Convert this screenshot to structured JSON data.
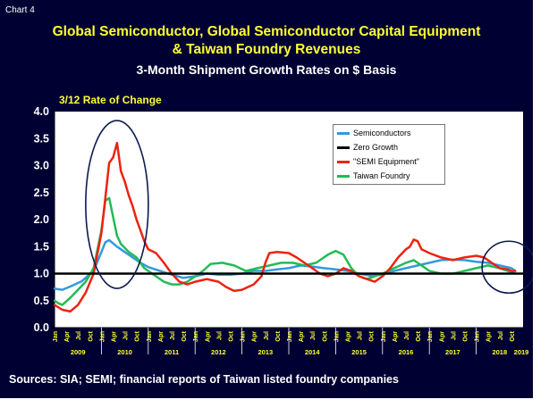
{
  "chart_label": "Chart 4",
  "title_line1": "Global Semiconductor, Global Semiconductor Capital Equipment",
  "title_line2": "& Taiwan Foundry  Revenues",
  "subtitle": "3-Month Shipment Growth Rates on $ Basis",
  "source": "Sources: SIA; SEMI; financial reports of Taiwan listed foundry companies",
  "colors": {
    "background": "#000033",
    "plot_area": "#ffffff",
    "title": "#ffff33",
    "semiconductors": "#3399dd",
    "zero_growth": "#000000",
    "semi_equipment": "#ee2211",
    "taiwan_foundry": "#22bb55",
    "highlight_ellipse": "#0a1a50"
  },
  "chart_data": {
    "type": "line",
    "ylabel": "3/12 Rate of Change",
    "ylim": [
      0,
      4
    ],
    "yticks": [
      "0.0",
      "0.5",
      "1.0",
      "1.5",
      "2.0",
      "2.5",
      "3.0",
      "3.5",
      "4.0"
    ],
    "xlim": [
      "2009-01",
      "2019-01"
    ],
    "month_ticks": [
      "Jan",
      "Apr",
      "Jul",
      "Oct"
    ],
    "year_labels": [
      "2009",
      "2010",
      "2011",
      "2012",
      "2013",
      "2014",
      "2015",
      "2016",
      "2017",
      "2018",
      "2019"
    ],
    "grid": false,
    "legend_position": "top-right",
    "series": [
      {
        "name": "Semiconductors",
        "points": [
          [
            "2009-01",
            0.72
          ],
          [
            "2009-03",
            0.7
          ],
          [
            "2009-05",
            0.76
          ],
          [
            "2009-08",
            0.86
          ],
          [
            "2009-11",
            1.05
          ],
          [
            "2010-01",
            1.4
          ],
          [
            "2010-02",
            1.58
          ],
          [
            "2010-03",
            1.62
          ],
          [
            "2010-05",
            1.5
          ],
          [
            "2010-07",
            1.4
          ],
          [
            "2010-09",
            1.3
          ],
          [
            "2010-11",
            1.2
          ],
          [
            "2011-01",
            1.12
          ],
          [
            "2011-04",
            1.05
          ],
          [
            "2011-07",
            0.98
          ],
          [
            "2011-10",
            0.92
          ],
          [
            "2012-01",
            0.95
          ],
          [
            "2012-04",
            1.0
          ],
          [
            "2012-07",
            0.98
          ],
          [
            "2012-10",
            0.98
          ],
          [
            "2013-01",
            1.0
          ],
          [
            "2013-04",
            1.05
          ],
          [
            "2013-07",
            1.05
          ],
          [
            "2013-10",
            1.08
          ],
          [
            "2014-01",
            1.1
          ],
          [
            "2014-04",
            1.15
          ],
          [
            "2014-07",
            1.13
          ],
          [
            "2014-10",
            1.1
          ],
          [
            "2015-01",
            1.08
          ],
          [
            "2015-04",
            1.05
          ],
          [
            "2015-07",
            1.0
          ],
          [
            "2015-10",
            0.96
          ],
          [
            "2016-01",
            0.98
          ],
          [
            "2016-04",
            1.05
          ],
          [
            "2016-07",
            1.1
          ],
          [
            "2016-10",
            1.15
          ],
          [
            "2017-01",
            1.2
          ],
          [
            "2017-04",
            1.25
          ],
          [
            "2017-07",
            1.26
          ],
          [
            "2017-10",
            1.25
          ],
          [
            "2018-01",
            1.22
          ],
          [
            "2018-04",
            1.2
          ],
          [
            "2018-07",
            1.15
          ],
          [
            "2018-10",
            1.1
          ],
          [
            "2018-11",
            1.05
          ]
        ]
      },
      {
        "name": "Zero Growth",
        "points": [
          [
            "2009-01",
            1.0
          ],
          [
            "2019-01",
            1.0
          ]
        ]
      },
      {
        "name": "\"SEMI Equipment\"",
        "points": [
          [
            "2009-01",
            0.42
          ],
          [
            "2009-03",
            0.33
          ],
          [
            "2009-05",
            0.3
          ],
          [
            "2009-07",
            0.42
          ],
          [
            "2009-09",
            0.65
          ],
          [
            "2009-11",
            1.0
          ],
          [
            "2010-01",
            1.75
          ],
          [
            "2010-02",
            2.4
          ],
          [
            "2010-03",
            3.05
          ],
          [
            "2010-04",
            3.15
          ],
          [
            "2010-05",
            3.42
          ],
          [
            "2010-06",
            2.9
          ],
          [
            "2010-07",
            2.7
          ],
          [
            "2010-08",
            2.45
          ],
          [
            "2010-09",
            2.25
          ],
          [
            "2010-10",
            2.0
          ],
          [
            "2010-11",
            1.8
          ],
          [
            "2010-12",
            1.6
          ],
          [
            "2011-01",
            1.45
          ],
          [
            "2011-03",
            1.38
          ],
          [
            "2011-05",
            1.2
          ],
          [
            "2011-07",
            1.0
          ],
          [
            "2011-09",
            0.85
          ],
          [
            "2011-11",
            0.8
          ],
          [
            "2012-01",
            0.85
          ],
          [
            "2012-04",
            0.9
          ],
          [
            "2012-07",
            0.85
          ],
          [
            "2012-09",
            0.75
          ],
          [
            "2012-11",
            0.68
          ],
          [
            "2013-01",
            0.7
          ],
          [
            "2013-04",
            0.8
          ],
          [
            "2013-06",
            0.95
          ],
          [
            "2013-07",
            1.2
          ],
          [
            "2013-08",
            1.38
          ],
          [
            "2013-10",
            1.4
          ],
          [
            "2014-01",
            1.38
          ],
          [
            "2014-03",
            1.3
          ],
          [
            "2014-05",
            1.2
          ],
          [
            "2014-07",
            1.1
          ],
          [
            "2014-09",
            1.0
          ],
          [
            "2014-11",
            0.95
          ],
          [
            "2015-01",
            1.0
          ],
          [
            "2015-03",
            1.1
          ],
          [
            "2015-05",
            1.05
          ],
          [
            "2015-07",
            0.95
          ],
          [
            "2015-09",
            0.9
          ],
          [
            "2015-11",
            0.85
          ],
          [
            "2016-01",
            0.95
          ],
          [
            "2016-03",
            1.1
          ],
          [
            "2016-05",
            1.3
          ],
          [
            "2016-07",
            1.45
          ],
          [
            "2016-08",
            1.5
          ],
          [
            "2016-09",
            1.63
          ],
          [
            "2016-10",
            1.6
          ],
          [
            "2016-11",
            1.45
          ],
          [
            "2017-01",
            1.38
          ],
          [
            "2017-04",
            1.3
          ],
          [
            "2017-07",
            1.25
          ],
          [
            "2017-10",
            1.3
          ],
          [
            "2018-01",
            1.33
          ],
          [
            "2018-03",
            1.3
          ],
          [
            "2018-05",
            1.2
          ],
          [
            "2018-07",
            1.1
          ],
          [
            "2018-09",
            1.08
          ],
          [
            "2018-10",
            1.05
          ],
          [
            "2018-11",
            1.05
          ]
        ]
      },
      {
        "name": "Taiwan Foundry",
        "points": [
          [
            "2009-01",
            0.5
          ],
          [
            "2009-02",
            0.45
          ],
          [
            "2009-03",
            0.42
          ],
          [
            "2009-05",
            0.55
          ],
          [
            "2009-07",
            0.7
          ],
          [
            "2009-09",
            0.85
          ],
          [
            "2009-11",
            1.1
          ],
          [
            "2010-01",
            1.8
          ],
          [
            "2010-02",
            2.35
          ],
          [
            "2010-03",
            2.4
          ],
          [
            "2010-04",
            2.05
          ],
          [
            "2010-05",
            1.7
          ],
          [
            "2010-06",
            1.55
          ],
          [
            "2010-08",
            1.4
          ],
          [
            "2010-10",
            1.3
          ],
          [
            "2010-12",
            1.1
          ],
          [
            "2011-02",
            1.0
          ],
          [
            "2011-05",
            0.85
          ],
          [
            "2011-07",
            0.8
          ],
          [
            "2011-09",
            0.8
          ],
          [
            "2011-11",
            0.85
          ],
          [
            "2012-01",
            0.95
          ],
          [
            "2012-03",
            1.05
          ],
          [
            "2012-05",
            1.18
          ],
          [
            "2012-08",
            1.2
          ],
          [
            "2012-11",
            1.15
          ],
          [
            "2013-02",
            1.05
          ],
          [
            "2013-05",
            1.1
          ],
          [
            "2013-08",
            1.15
          ],
          [
            "2013-11",
            1.2
          ],
          [
            "2014-02",
            1.2
          ],
          [
            "2014-05",
            1.15
          ],
          [
            "2014-08",
            1.2
          ],
          [
            "2014-11",
            1.35
          ],
          [
            "2015-01",
            1.42
          ],
          [
            "2015-03",
            1.35
          ],
          [
            "2015-05",
            1.1
          ],
          [
            "2015-07",
            0.95
          ],
          [
            "2015-09",
            0.9
          ],
          [
            "2015-11",
            0.95
          ],
          [
            "2016-01",
            1.0
          ],
          [
            "2016-04",
            1.1
          ],
          [
            "2016-07",
            1.2
          ],
          [
            "2016-09",
            1.25
          ],
          [
            "2016-11",
            1.15
          ],
          [
            "2017-01",
            1.05
          ],
          [
            "2017-04",
            1.0
          ],
          [
            "2017-07",
            1.0
          ],
          [
            "2017-10",
            1.05
          ],
          [
            "2018-01",
            1.1
          ],
          [
            "2018-04",
            1.15
          ],
          [
            "2018-07",
            1.1
          ],
          [
            "2018-09",
            1.05
          ],
          [
            "2018-11",
            1.0
          ]
        ]
      }
    ]
  }
}
